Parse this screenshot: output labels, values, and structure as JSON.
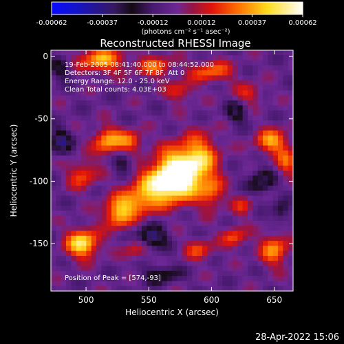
{
  "colorbar": {
    "ticks": [
      "-0.00062",
      "-0.00037",
      "-0.00012",
      "0.00012",
      "0.00037",
      "0.00062"
    ],
    "units": "(photons cm⁻² s⁻¹ asec⁻²)",
    "range": [
      -0.00062,
      0.00062
    ]
  },
  "footer": {
    "date_stamp": "28-Apr-2022 15:06"
  },
  "chart_data": {
    "type": "heatmap",
    "title": "Reconstructed RHESSI Image",
    "xlabel": "Heliocentric X (arcsec)",
    "ylabel": "Heliocentric Y (arcsec)",
    "xlim": [
      472,
      665
    ],
    "ylim": [
      -188,
      5
    ],
    "x_ticks": [
      500,
      550,
      600,
      650
    ],
    "y_ticks": [
      0,
      -50,
      -100,
      -150
    ],
    "info_lines": [
      "19-Feb-2005 08:41:40.000 to 08:44:52.000",
      "Detectors: 3F 4F 5F 6F 7F 8F, Att 0",
      "Energy Range: 12.0 - 25.0 keV",
      "Clean     Total counts: 4.03E+03"
    ],
    "peak_label": "Position of Peak = [574,-93]",
    "peak": [
      574,
      -93
    ],
    "grid": {
      "nx": 48,
      "ny": 48
    },
    "sources": [
      {
        "x": 574,
        "y": -93,
        "amp": 1.0,
        "sx": 12,
        "sy": 14
      },
      {
        "x": 560,
        "y": -102,
        "amp": 0.72,
        "sx": 14,
        "sy": 10
      },
      {
        "x": 592,
        "y": -82,
        "amp": 0.55,
        "sx": 10,
        "sy": 14
      },
      {
        "x": 540,
        "y": -117,
        "amp": 0.55,
        "sx": 12,
        "sy": 8
      },
      {
        "x": 525,
        "y": -127,
        "amp": 0.58,
        "sx": 8,
        "sy": 8
      },
      {
        "x": 497,
        "y": -150,
        "amp": 0.82,
        "sx": 9,
        "sy": 8
      },
      {
        "x": 517,
        "y": -68,
        "amp": 0.6,
        "sx": 8,
        "sy": 8
      },
      {
        "x": 535,
        "y": -68,
        "amp": 0.5,
        "sx": 7,
        "sy": 6
      },
      {
        "x": 497,
        "y": -95,
        "amp": 0.42,
        "sx": 8,
        "sy": 8
      },
      {
        "x": 512,
        "y": -3,
        "amp": 0.62,
        "sx": 13,
        "sy": 7
      },
      {
        "x": 555,
        "y": -8,
        "amp": 0.45,
        "sx": 10,
        "sy": 6
      },
      {
        "x": 600,
        "y": -12,
        "amp": 0.48,
        "sx": 12,
        "sy": 6
      },
      {
        "x": 648,
        "y": -68,
        "amp": 0.6,
        "sx": 9,
        "sy": 7
      },
      {
        "x": 660,
        "y": -85,
        "amp": 0.42,
        "sx": 6,
        "sy": 8
      },
      {
        "x": 650,
        "y": -155,
        "amp": 0.55,
        "sx": 8,
        "sy": 9
      },
      {
        "x": 618,
        "y": -145,
        "amp": 0.42,
        "sx": 7,
        "sy": 6
      },
      {
        "x": 590,
        "y": -155,
        "amp": 0.38,
        "sx": 8,
        "sy": 6
      },
      {
        "x": 600,
        "y": -110,
        "amp": 0.42,
        "sx": 7,
        "sy": 9
      },
      {
        "x": 540,
        "y": -155,
        "amp": 0.32,
        "sx": 7,
        "sy": 6
      },
      {
        "x": 625,
        "y": -120,
        "amp": 0.3,
        "sx": 6,
        "sy": 6
      },
      {
        "x": 575,
        "y": -28,
        "amp": 0.35,
        "sx": 8,
        "sy": 6
      },
      {
        "x": 630,
        "y": -30,
        "amp": 0.32,
        "sx": 8,
        "sy": 6
      }
    ],
    "negatives": [
      {
        "x": 552,
        "y": -145,
        "amp": 0.55,
        "sx": 8,
        "sy": 6
      },
      {
        "x": 480,
        "y": -68,
        "amp": 0.45,
        "sx": 6,
        "sy": 7
      },
      {
        "x": 640,
        "y": -100,
        "amp": 0.4,
        "sx": 7,
        "sy": 7
      },
      {
        "x": 620,
        "y": -45,
        "amp": 0.35,
        "sx": 6,
        "sy": 6
      },
      {
        "x": 560,
        "y": -175,
        "amp": 0.35,
        "sx": 10,
        "sy": 5
      },
      {
        "x": 480,
        "y": -10,
        "amp": 0.3,
        "sx": 6,
        "sy": 6
      },
      {
        "x": 530,
        "y": -85,
        "amp": 0.3,
        "sx": 6,
        "sy": 6
      },
      {
        "x": 655,
        "y": -125,
        "amp": 0.3,
        "sx": 5,
        "sy": 6
      }
    ]
  }
}
